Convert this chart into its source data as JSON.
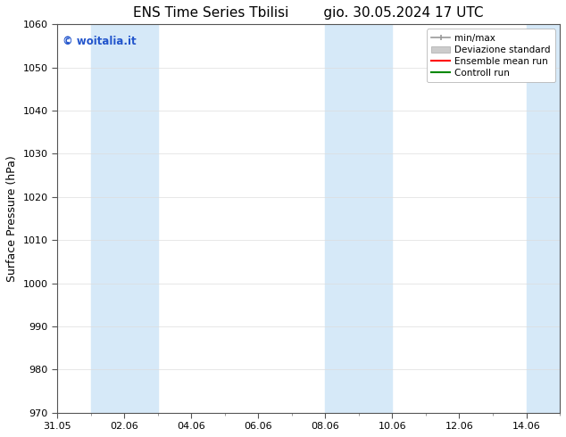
{
  "title": "ENS Time Series Tbilisi        gio. 30.05.2024 17 UTC",
  "ylabel": "Surface Pressure (hPa)",
  "ylim": [
    970,
    1060
  ],
  "yticks": [
    970,
    980,
    990,
    1000,
    1010,
    1020,
    1030,
    1040,
    1050,
    1060
  ],
  "xtick_labels": [
    "31.05",
    "02.06",
    "04.06",
    "06.06",
    "08.06",
    "10.06",
    "12.06",
    "14.06"
  ],
  "xtick_positions": [
    0,
    2,
    4,
    6,
    8,
    10,
    12,
    14
  ],
  "xlim": [
    0,
    15
  ],
  "shaded_regions": [
    {
      "start": 1,
      "end": 3
    },
    {
      "start": 8,
      "end": 10
    },
    {
      "start": 14,
      "end": 15
    }
  ],
  "shade_color": "#d6e9f8",
  "background_color": "#ffffff",
  "watermark": "© woitalia.it",
  "watermark_color": "#2255cc",
  "legend_entries": [
    "min/max",
    "Deviazione standard",
    "Ensemble mean run",
    "Controll run"
  ],
  "legend_color_minmax": "#999999",
  "legend_color_std": "#cccccc",
  "legend_color_mean": "#ff0000",
  "legend_color_ctrl": "#008800",
  "title_fontsize": 11,
  "axis_fontsize": 9,
  "tick_fontsize": 8,
  "legend_fontsize": 7.5,
  "watermark_fontsize": 8.5
}
